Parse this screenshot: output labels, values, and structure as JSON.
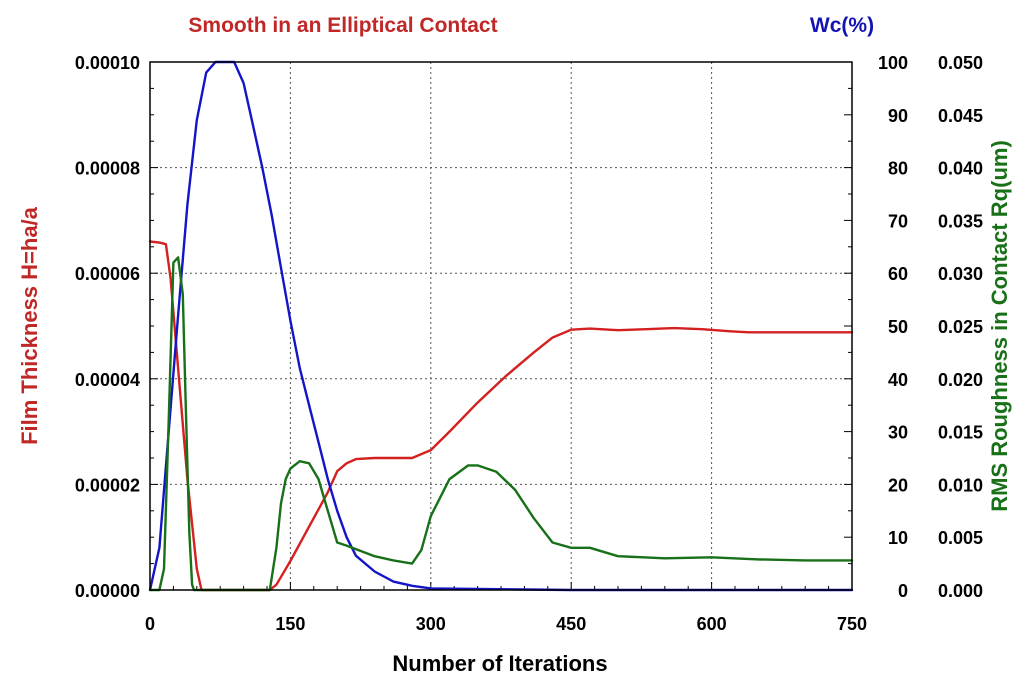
{
  "chart_data": {
    "type": "line",
    "title": "Smooth in an Elliptical Contact",
    "right_title": "Wc(%)",
    "xlabel": "Number of Iterations",
    "ylabel_left": "Film Thickness H=ha/a",
    "ylabel_right": "RMS Roughness in Contact Rq(um)",
    "xlim": [
      0,
      750
    ],
    "x_ticks": [
      "0",
      "150",
      "300",
      "450",
      "600",
      "750"
    ],
    "y_left_ticks": [
      "0.00000",
      "0.00002",
      "0.00004",
      "0.00006",
      "0.00008",
      "0.00010"
    ],
    "y_mid_ticks": [
      "0",
      "10",
      "20",
      "30",
      "40",
      "50",
      "60",
      "70",
      "80",
      "90",
      "100"
    ],
    "y_right_ticks": [
      "0.000",
      "0.005",
      "0.010",
      "0.015",
      "0.020",
      "0.025",
      "0.030",
      "0.035",
      "0.040",
      "0.045",
      "0.050"
    ],
    "grid": true,
    "series": [
      {
        "axis": "left",
        "ylim": [
          0,
          0.0001
        ],
        "color": "#d42020",
        "x": [
          0,
          10,
          17,
          22,
          30,
          40,
          50,
          55,
          60,
          100,
          128,
          135,
          150,
          170,
          190,
          200,
          210,
          220,
          240,
          260,
          280,
          300,
          320,
          350,
          380,
          410,
          430,
          450,
          470,
          500,
          530,
          560,
          590,
          620,
          640,
          700,
          750
        ],
        "y": [
          6.6e-05,
          6.58e-05,
          6.55e-05,
          5.9e-05,
          4.2e-05,
          2.1e-05,
          4e-06,
          0.0,
          0.0,
          0.0,
          0.0,
          1e-06,
          5.5e-06,
          1.2e-05,
          1.85e-05,
          2.25e-05,
          2.4e-05,
          2.48e-05,
          2.5e-05,
          2.5e-05,
          2.5e-05,
          2.65e-05,
          3e-05,
          3.55e-05,
          4.05e-05,
          4.5e-05,
          4.78e-05,
          4.93e-05,
          4.95e-05,
          4.92e-05,
          4.94e-05,
          4.96e-05,
          4.94e-05,
          4.9e-05,
          4.88e-05,
          4.88e-05,
          4.88e-05
        ]
      },
      {
        "name": "Wc(%)",
        "axis": "mid",
        "ylim": [
          0,
          100
        ],
        "color": "#1414c8",
        "x": [
          0,
          10,
          20,
          30,
          40,
          50,
          60,
          70,
          80,
          90,
          100,
          110,
          120,
          130,
          140,
          150,
          160,
          170,
          180,
          190,
          200,
          210,
          220,
          240,
          260,
          280,
          300,
          350,
          400,
          450,
          500,
          600,
          750
        ],
        "y": [
          0,
          8,
          30,
          52,
          73,
          89,
          98,
          100,
          100,
          100,
          96,
          88,
          80,
          71,
          61,
          51,
          42,
          35,
          28,
          21,
          15,
          10,
          6.5,
          3.5,
          1.6,
          0.8,
          0.3,
          0.2,
          0.1,
          0,
          0,
          0,
          0
        ]
      },
      {
        "axis": "right",
        "ylim": [
          0,
          0.05
        ],
        "color": "#187018",
        "x": [
          0,
          10,
          15,
          20,
          25,
          30,
          35,
          38,
          42,
          45,
          47,
          49,
          50,
          55,
          128,
          135,
          140,
          145,
          150,
          160,
          170,
          180,
          190,
          200,
          210,
          240,
          260,
          280,
          290,
          300,
          320,
          340,
          350,
          370,
          390,
          410,
          430,
          450,
          470,
          500,
          550,
          600,
          650,
          700,
          750
        ],
        "y": [
          0,
          0,
          0.002,
          0.016,
          0.031,
          0.0315,
          0.028,
          0.018,
          0.0055,
          0.0005,
          0,
          0,
          0,
          0,
          0,
          0.004,
          0.0082,
          0.0105,
          0.0115,
          0.0122,
          0.012,
          0.0105,
          0.0075,
          0.0045,
          0.0042,
          0.0032,
          0.0028,
          0.0025,
          0.0038,
          0.007,
          0.0105,
          0.0118,
          0.0118,
          0.0112,
          0.0095,
          0.0068,
          0.0045,
          0.004,
          0.004,
          0.0032,
          0.003,
          0.0031,
          0.0029,
          0.0028,
          0.0028
        ]
      }
    ]
  }
}
